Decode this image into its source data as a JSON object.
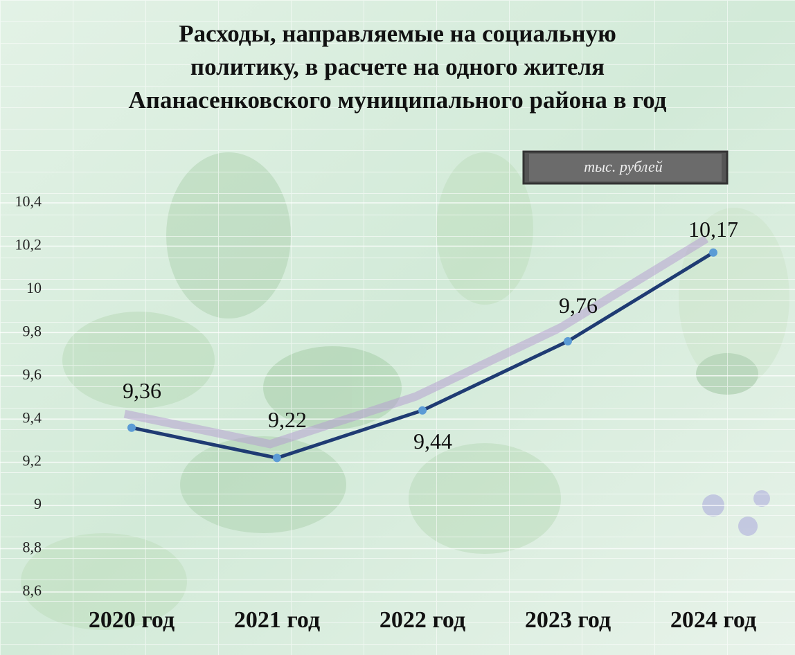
{
  "chart_data": {
    "type": "line",
    "title": [
      "Расходы, направляемые на социальную",
      "политику, в расчете на одного жителя",
      "Апанасенковского муниципального района в год"
    ],
    "unit_label": "тыс. рублей",
    "categories": [
      "2020 год",
      "2021 год",
      "2022 год",
      "2023 год",
      "2024 год"
    ],
    "series": [
      {
        "color": "#1f3b73",
        "marker_color": "#5b9bd5",
        "values": [
          9.36,
          9.22,
          9.44,
          9.76,
          10.17
        ],
        "value_labels": [
          "9,36",
          "9,22",
          "9,44",
          "9,76",
          "10,17"
        ]
      }
    ],
    "ylim": [
      8.6,
      10.4
    ],
    "yticks": [
      {
        "value": 8.6,
        "label": "8,6"
      },
      {
        "value": 8.8,
        "label": "8,8"
      },
      9,
      {
        "value": 9.2,
        "label": "9,2"
      },
      {
        "value": 9.4,
        "label": "9,4"
      },
      {
        "value": 9.6,
        "label": "9,6"
      },
      {
        "value": 9.8,
        "label": "9,8"
      },
      10,
      {
        "value": 10.2,
        "label": "10,2"
      },
      {
        "value": 10.4,
        "label": "10,4"
      }
    ],
    "grid": true
  }
}
